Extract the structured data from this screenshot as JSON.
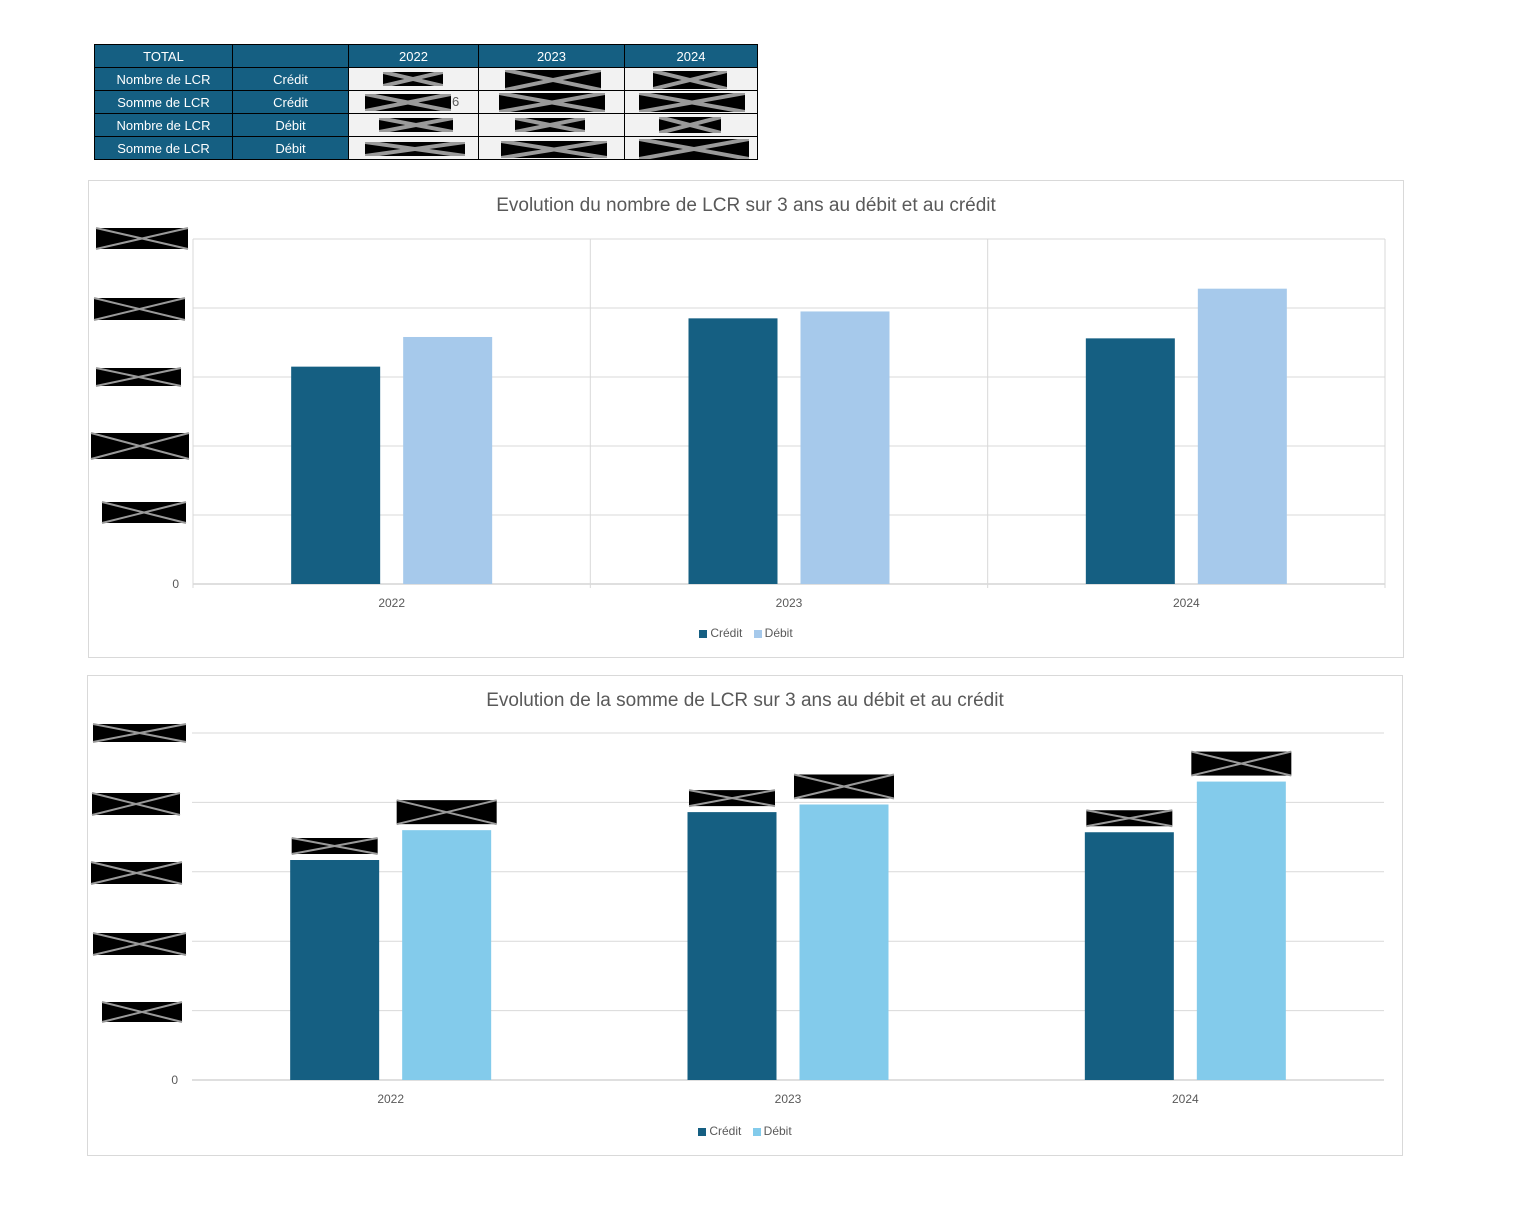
{
  "table": {
    "headers": [
      "TOTAL",
      "",
      "2022",
      "2023",
      "2024"
    ],
    "rows": [
      {
        "label": "Nombre de LCR",
        "type": "Crédit"
      },
      {
        "label": "Somme de LCR",
        "type": "Crédit",
        "residual": "6"
      },
      {
        "label": "Nombre de LCR",
        "type": "Débit"
      },
      {
        "label": "Somme de LCR",
        "type": "Débit"
      }
    ]
  },
  "colors": {
    "credit": "#155f82",
    "debit_count": "#a6c9eb",
    "debit_sum": "#83cbeb",
    "header_bg": "#155f82",
    "grid": "#d9d9d9"
  },
  "chart_data": [
    {
      "type": "bar",
      "title": "Evolution du nombre de LCR sur 3 ans au débit et au crédit",
      "categories": [
        "2022",
        "2023",
        "2024"
      ],
      "series": [
        {
          "name": "Crédit",
          "values": [
            3.15,
            3.85,
            3.56
          ]
        },
        {
          "name": "Débit",
          "values": [
            3.58,
            3.95,
            4.28
          ]
        }
      ],
      "ylim": [
        0,
        5
      ],
      "y_tick_labels": [
        "0"
      ],
      "grid": true,
      "legend": "bottom"
    },
    {
      "type": "bar",
      "title": "Evolution de la somme de LCR sur 3 ans au débit et au crédit",
      "categories": [
        "2022",
        "2023",
        "2024"
      ],
      "series": [
        {
          "name": "Crédit",
          "values": [
            3.17,
            3.86,
            3.57
          ]
        },
        {
          "name": "Débit",
          "values": [
            3.6,
            3.97,
            4.3
          ]
        }
      ],
      "ylim": [
        0,
        5
      ],
      "y_tick_labels": [
        "0"
      ],
      "grid": true,
      "legend": "bottom"
    }
  ]
}
